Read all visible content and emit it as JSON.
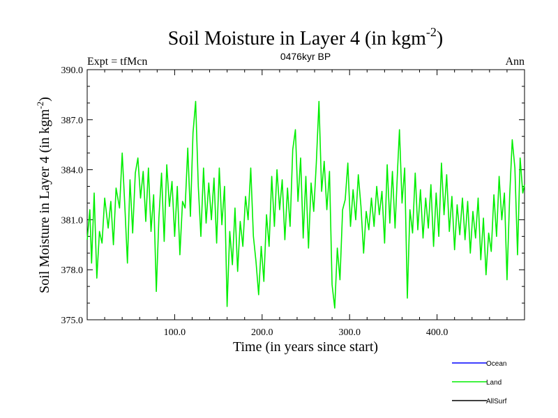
{
  "chart_data": {
    "type": "line",
    "title": "Soil Moisture in Layer 4 (in kgm",
    "title_superscript": "-2",
    "title_suffix": ")",
    "subtitle": "0476kyr BP",
    "left_label": "Expt = tfMcn",
    "right_label": "Ann",
    "xlabel": "Time (in years since start)",
    "ylabel": "Soil Moisture in Layer 4 (in kgm",
    "ylabel_superscript": "-2",
    "ylabel_suffix": ")",
    "xlim": [
      0,
      500
    ],
    "ylim": [
      375.0,
      390.0
    ],
    "x_ticks": [
      100,
      200,
      300,
      400
    ],
    "x_tick_labels": [
      "100.0",
      "200.0",
      "300.0",
      "400.0"
    ],
    "y_ticks": [
      375,
      378,
      381,
      384,
      387,
      390
    ],
    "y_tick_labels": [
      "375.0",
      "378.0",
      "381.0",
      "384.0",
      "387.0",
      "390.0"
    ],
    "legend": [
      {
        "name": "Ocean",
        "color": "#0000ff"
      },
      {
        "name": "Land",
        "color": "#00ee00"
      },
      {
        "name": "AllSurf",
        "color": "#000000"
      }
    ],
    "series": [
      {
        "name": "Land",
        "color": "#00ee00",
        "points": [
          [
            0,
            379.8
          ],
          [
            3,
            381.6
          ],
          [
            5,
            378.4
          ],
          [
            8,
            382.6
          ],
          [
            11,
            377.5
          ],
          [
            14,
            380.3
          ],
          [
            17,
            379.6
          ],
          [
            20,
            382.3
          ],
          [
            24,
            380.5
          ],
          [
            27,
            382.1
          ],
          [
            30,
            379.5
          ],
          [
            33,
            382.9
          ],
          [
            37,
            381.7
          ],
          [
            40,
            385.0
          ],
          [
            43,
            381.9
          ],
          [
            46,
            378.4
          ],
          [
            49,
            383.4
          ],
          [
            52,
            380.2
          ],
          [
            55,
            383.8
          ],
          [
            58,
            384.7
          ],
          [
            61,
            382.3
          ],
          [
            64,
            383.9
          ],
          [
            67,
            380.9
          ],
          [
            70,
            384.1
          ],
          [
            73,
            380.3
          ],
          [
            76,
            382.5
          ],
          [
            79,
            376.7
          ],
          [
            82,
            381.1
          ],
          [
            85,
            383.8
          ],
          [
            88,
            379.7
          ],
          [
            91,
            384.3
          ],
          [
            94,
            381.8
          ],
          [
            97,
            383.3
          ],
          [
            100,
            380.0
          ],
          [
            103,
            383.0
          ],
          [
            106,
            378.9
          ],
          [
            109,
            382.1
          ],
          [
            112,
            381.7
          ],
          [
            115,
            385.3
          ],
          [
            118,
            381.2
          ],
          [
            121,
            386.2
          ],
          [
            124,
            388.1
          ],
          [
            127,
            383.0
          ],
          [
            130,
            380.0
          ],
          [
            133,
            384.1
          ],
          [
            136,
            380.8
          ],
          [
            139,
            383.2
          ],
          [
            142,
            381.0
          ],
          [
            145,
            383.5
          ],
          [
            148,
            379.6
          ],
          [
            151,
            384.1
          ],
          [
            154,
            380.7
          ],
          [
            157,
            383.0
          ],
          [
            160,
            375.8
          ],
          [
            163,
            380.3
          ],
          [
            166,
            378.3
          ],
          [
            169,
            381.7
          ],
          [
            172,
            377.9
          ],
          [
            175,
            380.9
          ],
          [
            178,
            379.4
          ],
          [
            181,
            382.4
          ],
          [
            184,
            381.0
          ],
          [
            187,
            384.1
          ],
          [
            190,
            380.0
          ],
          [
            193,
            378.5
          ],
          [
            196,
            376.5
          ],
          [
            199,
            379.4
          ],
          [
            202,
            377.3
          ],
          [
            205,
            381.3
          ],
          [
            208,
            379.4
          ],
          [
            211,
            383.6
          ],
          [
            214,
            380.6
          ],
          [
            217,
            384.0
          ],
          [
            220,
            381.6
          ],
          [
            223,
            383.4
          ],
          [
            226,
            379.8
          ],
          [
            229,
            382.9
          ],
          [
            232,
            380.6
          ],
          [
            235,
            385.2
          ],
          [
            238,
            386.4
          ],
          [
            241,
            382.1
          ],
          [
            244,
            384.7
          ],
          [
            247,
            379.9
          ],
          [
            250,
            383.6
          ],
          [
            253,
            379.3
          ],
          [
            256,
            383.2
          ],
          [
            259,
            381.5
          ],
          [
            262,
            384.4
          ],
          [
            265,
            388.1
          ],
          [
            268,
            382.7
          ],
          [
            271,
            384.5
          ],
          [
            274,
            381.6
          ],
          [
            277,
            383.9
          ],
          [
            280,
            377.1
          ],
          [
            283,
            375.7
          ],
          [
            286,
            379.3
          ],
          [
            289,
            377.4
          ],
          [
            292,
            381.6
          ],
          [
            295,
            382.2
          ],
          [
            298,
            384.4
          ],
          [
            301,
            380.6
          ],
          [
            304,
            382.8
          ],
          [
            307,
            381.0
          ],
          [
            310,
            383.7
          ],
          [
            313,
            381.8
          ],
          [
            316,
            379.0
          ],
          [
            319,
            381.5
          ],
          [
            322,
            380.4
          ],
          [
            325,
            382.3
          ],
          [
            328,
            380.6
          ],
          [
            331,
            383.0
          ],
          [
            334,
            381.3
          ],
          [
            337,
            382.7
          ],
          [
            340,
            379.6
          ],
          [
            343,
            384.3
          ],
          [
            346,
            380.8
          ],
          [
            349,
            383.9
          ],
          [
            352,
            380.5
          ],
          [
            355,
            384.2
          ],
          [
            357,
            386.4
          ],
          [
            360,
            382.0
          ],
          [
            363,
            384.1
          ],
          [
            366,
            376.3
          ],
          [
            369,
            381.6
          ],
          [
            372,
            380.2
          ],
          [
            375,
            383.8
          ],
          [
            378,
            380.4
          ],
          [
            381,
            382.8
          ],
          [
            384,
            379.9
          ],
          [
            387,
            382.3
          ],
          [
            390,
            380.5
          ],
          [
            393,
            383.1
          ],
          [
            396,
            379.4
          ],
          [
            399,
            382.6
          ],
          [
            402,
            380.0
          ],
          [
            405,
            384.4
          ],
          [
            408,
            381.3
          ],
          [
            411,
            383.7
          ],
          [
            414,
            380.3
          ],
          [
            417,
            382.4
          ],
          [
            420,
            379.2
          ],
          [
            423,
            381.9
          ],
          [
            426,
            380.1
          ],
          [
            429,
            382.3
          ],
          [
            432,
            379.8
          ],
          [
            435,
            382.1
          ],
          [
            438,
            379.0
          ],
          [
            441,
            381.5
          ],
          [
            444,
            379.9
          ],
          [
            447,
            382.3
          ],
          [
            450,
            378.6
          ],
          [
            453,
            381.1
          ],
          [
            456,
            377.7
          ],
          [
            459,
            380.2
          ],
          [
            462,
            379.1
          ],
          [
            465,
            382.5
          ],
          [
            468,
            380.0
          ],
          [
            471,
            383.6
          ],
          [
            474,
            381.0
          ],
          [
            477,
            382.6
          ],
          [
            480,
            377.4
          ],
          [
            483,
            382.4
          ],
          [
            486,
            385.8
          ],
          [
            489,
            384.1
          ],
          [
            492,
            378.9
          ],
          [
            495,
            384.7
          ],
          [
            498,
            382.6
          ],
          [
            500,
            383.1
          ]
        ]
      }
    ]
  }
}
